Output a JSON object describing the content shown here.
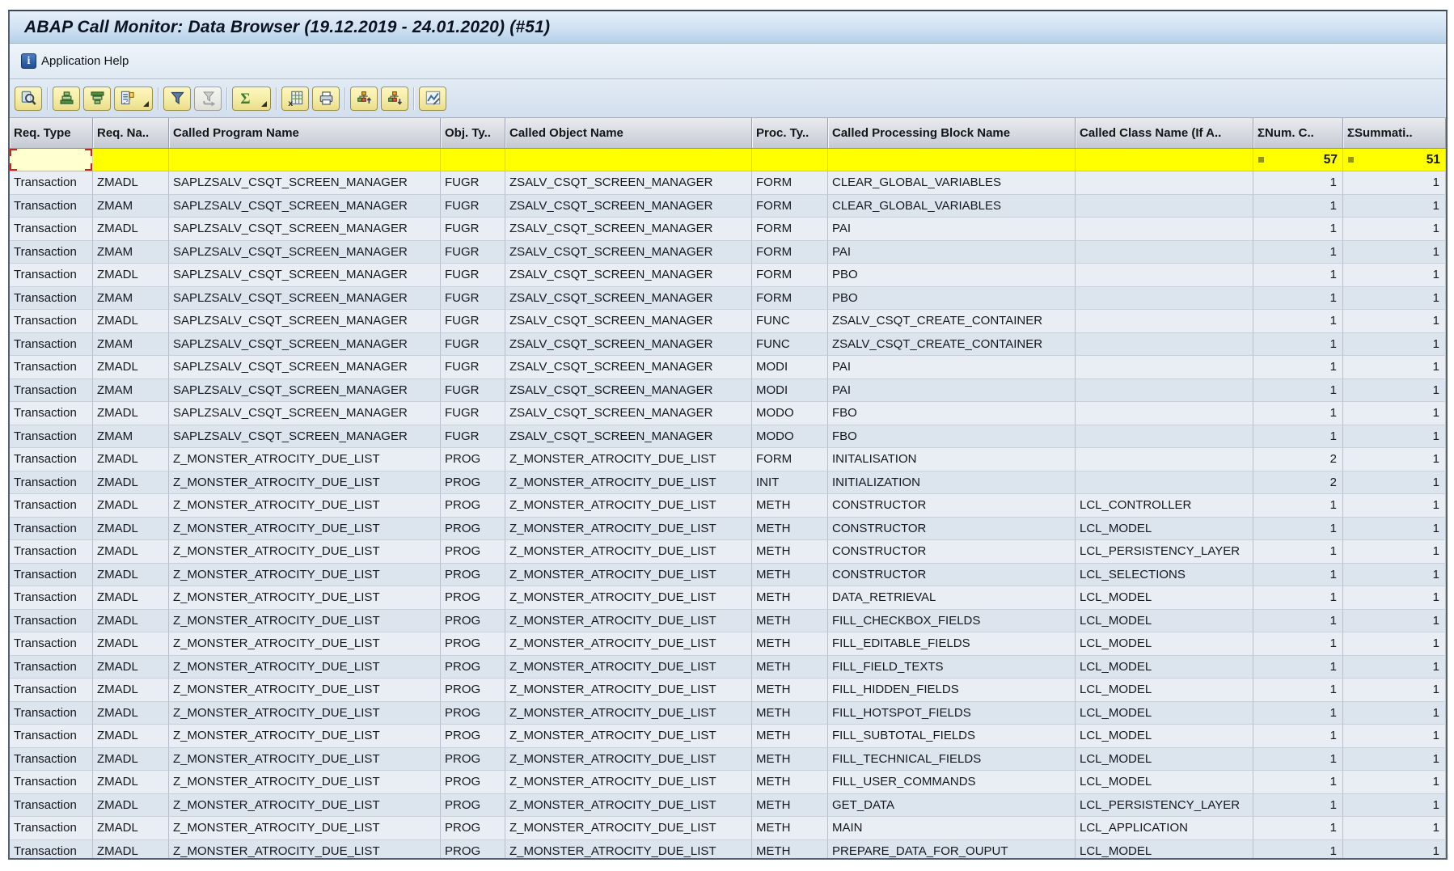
{
  "window": {
    "title": "ABAP Call Monitor: Data Browser (19.12.2019 - 24.01.2020) (#51)"
  },
  "menubar": {
    "application_help_label": "Application Help",
    "info_icon": "info-icon"
  },
  "toolbar": {
    "groups": [
      [
        {
          "icon": "details-icon"
        }
      ],
      [
        {
          "icon": "sort-ascending-icon"
        },
        {
          "icon": "sort-descending-icon"
        },
        {
          "icon": "choose-detail-icon",
          "split": true
        }
      ],
      [
        {
          "icon": "filter-icon"
        },
        {
          "icon": "delete-filter-icon",
          "disabled": true
        }
      ],
      [
        {
          "icon": "sum-icon",
          "split": true
        }
      ],
      [
        {
          "icon": "export-spreadsheet-icon"
        },
        {
          "icon": "print-icon"
        }
      ],
      [
        {
          "icon": "hierarchy-up-icon"
        },
        {
          "icon": "hierarchy-down-icon"
        }
      ],
      [
        {
          "icon": "graphic-icon"
        }
      ]
    ]
  },
  "table": {
    "headers": [
      "Req. Type",
      "Req. Na..",
      "Called Program Name",
      "Obj. Ty..",
      "Called Object Name",
      "Proc. Ty..",
      "Called Processing Block Name",
      "Called Class Name (If A..",
      "ΣNum. C..",
      "ΣSummati.."
    ],
    "totals": {
      "num_calls": "57",
      "summarization": "51",
      "marker_icon": "sum-marker-icon"
    },
    "rows": [
      [
        "Transaction",
        "ZMADL",
        "SAPLZSALV_CSQT_SCREEN_MANAGER",
        "FUGR",
        "ZSALV_CSQT_SCREEN_MANAGER",
        "FORM",
        "CLEAR_GLOBAL_VARIABLES",
        "",
        "1",
        "1"
      ],
      [
        "Transaction",
        "ZMAM",
        "SAPLZSALV_CSQT_SCREEN_MANAGER",
        "FUGR",
        "ZSALV_CSQT_SCREEN_MANAGER",
        "FORM",
        "CLEAR_GLOBAL_VARIABLES",
        "",
        "1",
        "1"
      ],
      [
        "Transaction",
        "ZMADL",
        "SAPLZSALV_CSQT_SCREEN_MANAGER",
        "FUGR",
        "ZSALV_CSQT_SCREEN_MANAGER",
        "FORM",
        "PAI",
        "",
        "1",
        "1"
      ],
      [
        "Transaction",
        "ZMAM",
        "SAPLZSALV_CSQT_SCREEN_MANAGER",
        "FUGR",
        "ZSALV_CSQT_SCREEN_MANAGER",
        "FORM",
        "PAI",
        "",
        "1",
        "1"
      ],
      [
        "Transaction",
        "ZMADL",
        "SAPLZSALV_CSQT_SCREEN_MANAGER",
        "FUGR",
        "ZSALV_CSQT_SCREEN_MANAGER",
        "FORM",
        "PBO",
        "",
        "1",
        "1"
      ],
      [
        "Transaction",
        "ZMAM",
        "SAPLZSALV_CSQT_SCREEN_MANAGER",
        "FUGR",
        "ZSALV_CSQT_SCREEN_MANAGER",
        "FORM",
        "PBO",
        "",
        "1",
        "1"
      ],
      [
        "Transaction",
        "ZMADL",
        "SAPLZSALV_CSQT_SCREEN_MANAGER",
        "FUGR",
        "ZSALV_CSQT_SCREEN_MANAGER",
        "FUNC",
        "ZSALV_CSQT_CREATE_CONTAINER",
        "",
        "1",
        "1"
      ],
      [
        "Transaction",
        "ZMAM",
        "SAPLZSALV_CSQT_SCREEN_MANAGER",
        "FUGR",
        "ZSALV_CSQT_SCREEN_MANAGER",
        "FUNC",
        "ZSALV_CSQT_CREATE_CONTAINER",
        "",
        "1",
        "1"
      ],
      [
        "Transaction",
        "ZMADL",
        "SAPLZSALV_CSQT_SCREEN_MANAGER",
        "FUGR",
        "ZSALV_CSQT_SCREEN_MANAGER",
        "MODI",
        "PAI",
        "",
        "1",
        "1"
      ],
      [
        "Transaction",
        "ZMAM",
        "SAPLZSALV_CSQT_SCREEN_MANAGER",
        "FUGR",
        "ZSALV_CSQT_SCREEN_MANAGER",
        "MODI",
        "PAI",
        "",
        "1",
        "1"
      ],
      [
        "Transaction",
        "ZMADL",
        "SAPLZSALV_CSQT_SCREEN_MANAGER",
        "FUGR",
        "ZSALV_CSQT_SCREEN_MANAGER",
        "MODO",
        "FBO",
        "",
        "1",
        "1"
      ],
      [
        "Transaction",
        "ZMAM",
        "SAPLZSALV_CSQT_SCREEN_MANAGER",
        "FUGR",
        "ZSALV_CSQT_SCREEN_MANAGER",
        "MODO",
        "FBO",
        "",
        "1",
        "1"
      ],
      [
        "Transaction",
        "ZMADL",
        "Z_MONSTER_ATROCITY_DUE_LIST",
        "PROG",
        "Z_MONSTER_ATROCITY_DUE_LIST",
        "FORM",
        "INITALISATION",
        "",
        "2",
        "1"
      ],
      [
        "Transaction",
        "ZMADL",
        "Z_MONSTER_ATROCITY_DUE_LIST",
        "PROG",
        "Z_MONSTER_ATROCITY_DUE_LIST",
        "INIT",
        "INITIALIZATION",
        "",
        "2",
        "1"
      ],
      [
        "Transaction",
        "ZMADL",
        "Z_MONSTER_ATROCITY_DUE_LIST",
        "PROG",
        "Z_MONSTER_ATROCITY_DUE_LIST",
        "METH",
        "CONSTRUCTOR",
        "LCL_CONTROLLER",
        "1",
        "1"
      ],
      [
        "Transaction",
        "ZMADL",
        "Z_MONSTER_ATROCITY_DUE_LIST",
        "PROG",
        "Z_MONSTER_ATROCITY_DUE_LIST",
        "METH",
        "CONSTRUCTOR",
        "LCL_MODEL",
        "1",
        "1"
      ],
      [
        "Transaction",
        "ZMADL",
        "Z_MONSTER_ATROCITY_DUE_LIST",
        "PROG",
        "Z_MONSTER_ATROCITY_DUE_LIST",
        "METH",
        "CONSTRUCTOR",
        "LCL_PERSISTENCY_LAYER",
        "1",
        "1"
      ],
      [
        "Transaction",
        "ZMADL",
        "Z_MONSTER_ATROCITY_DUE_LIST",
        "PROG",
        "Z_MONSTER_ATROCITY_DUE_LIST",
        "METH",
        "CONSTRUCTOR",
        "LCL_SELECTIONS",
        "1",
        "1"
      ],
      [
        "Transaction",
        "ZMADL",
        "Z_MONSTER_ATROCITY_DUE_LIST",
        "PROG",
        "Z_MONSTER_ATROCITY_DUE_LIST",
        "METH",
        "DATA_RETRIEVAL",
        "LCL_MODEL",
        "1",
        "1"
      ],
      [
        "Transaction",
        "ZMADL",
        "Z_MONSTER_ATROCITY_DUE_LIST",
        "PROG",
        "Z_MONSTER_ATROCITY_DUE_LIST",
        "METH",
        "FILL_CHECKBOX_FIELDS",
        "LCL_MODEL",
        "1",
        "1"
      ],
      [
        "Transaction",
        "ZMADL",
        "Z_MONSTER_ATROCITY_DUE_LIST",
        "PROG",
        "Z_MONSTER_ATROCITY_DUE_LIST",
        "METH",
        "FILL_EDITABLE_FIELDS",
        "LCL_MODEL",
        "1",
        "1"
      ],
      [
        "Transaction",
        "ZMADL",
        "Z_MONSTER_ATROCITY_DUE_LIST",
        "PROG",
        "Z_MONSTER_ATROCITY_DUE_LIST",
        "METH",
        "FILL_FIELD_TEXTS",
        "LCL_MODEL",
        "1",
        "1"
      ],
      [
        "Transaction",
        "ZMADL",
        "Z_MONSTER_ATROCITY_DUE_LIST",
        "PROG",
        "Z_MONSTER_ATROCITY_DUE_LIST",
        "METH",
        "FILL_HIDDEN_FIELDS",
        "LCL_MODEL",
        "1",
        "1"
      ],
      [
        "Transaction",
        "ZMADL",
        "Z_MONSTER_ATROCITY_DUE_LIST",
        "PROG",
        "Z_MONSTER_ATROCITY_DUE_LIST",
        "METH",
        "FILL_HOTSPOT_FIELDS",
        "LCL_MODEL",
        "1",
        "1"
      ],
      [
        "Transaction",
        "ZMADL",
        "Z_MONSTER_ATROCITY_DUE_LIST",
        "PROG",
        "Z_MONSTER_ATROCITY_DUE_LIST",
        "METH",
        "FILL_SUBTOTAL_FIELDS",
        "LCL_MODEL",
        "1",
        "1"
      ],
      [
        "Transaction",
        "ZMADL",
        "Z_MONSTER_ATROCITY_DUE_LIST",
        "PROG",
        "Z_MONSTER_ATROCITY_DUE_LIST",
        "METH",
        "FILL_TECHNICAL_FIELDS",
        "LCL_MODEL",
        "1",
        "1"
      ],
      [
        "Transaction",
        "ZMADL",
        "Z_MONSTER_ATROCITY_DUE_LIST",
        "PROG",
        "Z_MONSTER_ATROCITY_DUE_LIST",
        "METH",
        "FILL_USER_COMMANDS",
        "LCL_MODEL",
        "1",
        "1"
      ],
      [
        "Transaction",
        "ZMADL",
        "Z_MONSTER_ATROCITY_DUE_LIST",
        "PROG",
        "Z_MONSTER_ATROCITY_DUE_LIST",
        "METH",
        "GET_DATA",
        "LCL_PERSISTENCY_LAYER",
        "1",
        "1"
      ],
      [
        "Transaction",
        "ZMADL",
        "Z_MONSTER_ATROCITY_DUE_LIST",
        "PROG",
        "Z_MONSTER_ATROCITY_DUE_LIST",
        "METH",
        "MAIN",
        "LCL_APPLICATION",
        "1",
        "1"
      ],
      [
        "Transaction",
        "ZMADL",
        "Z_MONSTER_ATROCITY_DUE_LIST",
        "PROG",
        "Z_MONSTER_ATROCITY_DUE_LIST",
        "METH",
        "PREPARE_DATA_FOR_OUPUT",
        "LCL_MODEL",
        "1",
        "1"
      ]
    ]
  },
  "colors": {
    "totals_row_yellow": "#ffff00",
    "selected_cell": "#ffffcf",
    "selection_red": "#cc2222",
    "row_light": "#e9eef5",
    "row_dark": "#dce4ee",
    "toolbar_button_yellow": "#f5ecA4",
    "title_band_blue": "#b5d0e8"
  }
}
